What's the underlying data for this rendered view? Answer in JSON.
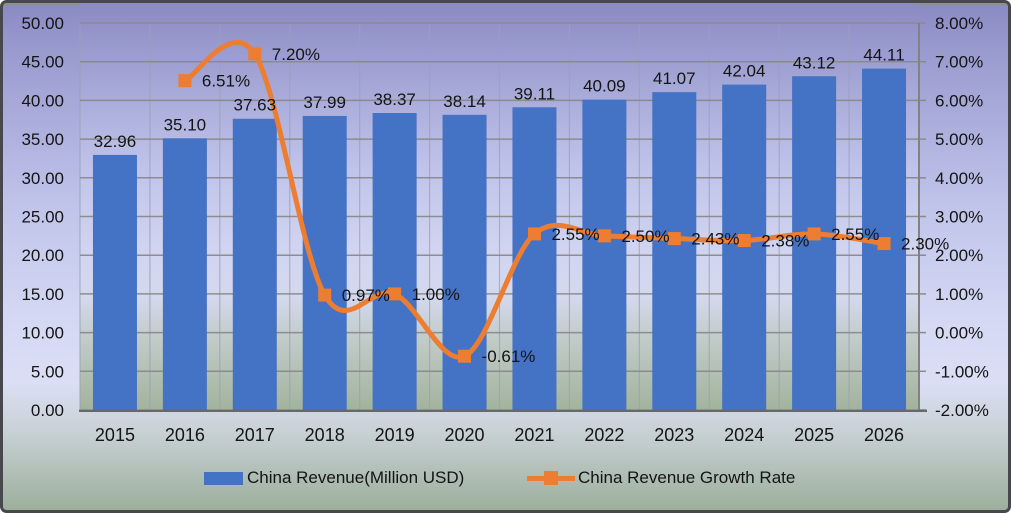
{
  "chart_data": {
    "type": "combo-bar-line",
    "title": "",
    "categories": [
      "2015",
      "2016",
      "2017",
      "2018",
      "2019",
      "2020",
      "2021",
      "2022",
      "2023",
      "2024",
      "2025",
      "2026"
    ],
    "series": [
      {
        "name": "China Revenue(Million USD)",
        "type": "bar",
        "axis": "left",
        "color": "#4472C4",
        "values": [
          32.96,
          35.1,
          37.63,
          37.99,
          38.37,
          38.14,
          39.11,
          40.09,
          41.07,
          42.04,
          43.12,
          44.11
        ],
        "data_labels": [
          "32.96",
          "35.10",
          "37.63",
          "37.99",
          "38.37",
          "38.14",
          "39.11",
          "40.09",
          "41.07",
          "42.04",
          "43.12",
          "44.11"
        ]
      },
      {
        "name": "China Revenue Growth Rate",
        "type": "line",
        "axis": "right",
        "color": "#ED7D31",
        "values": [
          null,
          6.51,
          7.2,
          0.97,
          1.0,
          -0.61,
          2.55,
          2.5,
          2.43,
          2.38,
          2.55,
          2.3
        ],
        "data_labels": [
          "",
          "6.51%",
          "7.20%",
          "0.97%",
          "1.00%",
          "-0.61%",
          "2.55%",
          "2.50%",
          "2.43%",
          "2.38%",
          "2.55%",
          "2.30%"
        ]
      }
    ],
    "left_axis": {
      "min": 0,
      "max": 50,
      "step": 5,
      "tick_labels": [
        "0.00",
        "5.00",
        "10.00",
        "15.00",
        "20.00",
        "25.00",
        "30.00",
        "35.00",
        "40.00",
        "45.00",
        "50.00"
      ]
    },
    "right_axis": {
      "min": -2,
      "max": 8,
      "step": 1,
      "tick_labels": [
        "-2.00%",
        "-1.00%",
        "0.00%",
        "1.00%",
        "2.00%",
        "3.00%",
        "4.00%",
        "5.00%",
        "6.00%",
        "7.00%",
        "8.00%"
      ]
    },
    "legend": {
      "position": "bottom",
      "entries": [
        "China Revenue(Million USD)",
        "China Revenue Growth Rate"
      ]
    },
    "grid": {
      "horizontal": true,
      "vertical": true
    }
  },
  "colors": {
    "bar": "#4472C4",
    "line": "#ED7D31",
    "gridline": "#8A8A8A",
    "vertical_gridline": "#9CA0B8",
    "axis_line": "#686868",
    "text": "#141414"
  }
}
